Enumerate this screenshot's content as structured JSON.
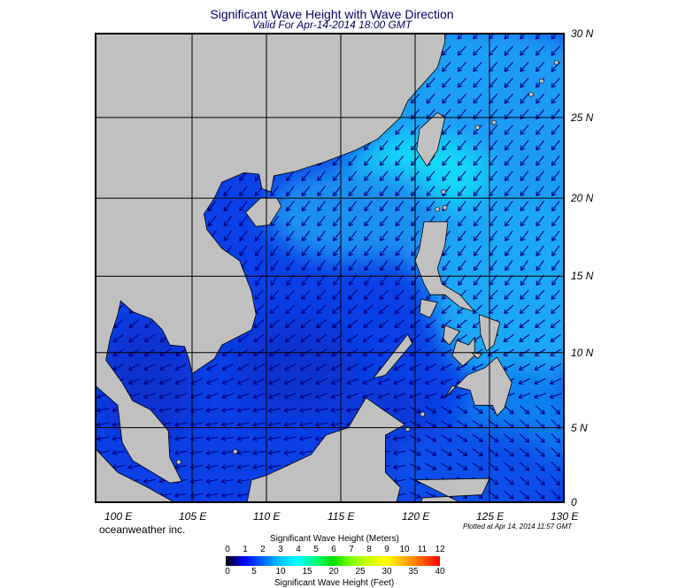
{
  "title": "Significant Wave Height with Wave Direction",
  "subtitle": "Valid For Apr-14-2014 18:00 GMT",
  "lon_labels": [
    "100 E",
    "105 E",
    "110 E",
    "115 E",
    "120 E",
    "125 E",
    "130 E"
  ],
  "lat_labels": [
    "30 N",
    "25 N",
    "20 N",
    "15 N",
    "10 N",
    "5 N",
    "0"
  ],
  "credit": "oceanweather inc.",
  "plotted": "Plotted at Apr 14, 2014 11:57 GMT",
  "colorbar": {
    "meters_title": "Significant Wave Height (Meters)",
    "feet_title": "Significant Wave Height (Feet)",
    "meters_ticks": [
      "0",
      "1",
      "2",
      "3",
      "4",
      "5",
      "6",
      "7",
      "8",
      "9",
      "10",
      "11",
      "12"
    ],
    "feet_ticks": [
      "0",
      "5",
      "10",
      "15",
      "20",
      "25",
      "30",
      "35",
      "40"
    ],
    "colors": [
      "#000000",
      "#0000ff",
      "#0060ff",
      "#00c0ff",
      "#00ffff",
      "#00ff80",
      "#00e000",
      "#80ff00",
      "#d0ff00",
      "#ffff00",
      "#ffb000",
      "#ff6000",
      "#ff0000"
    ]
  },
  "colors": {
    "land": "#c0c0c0",
    "sea_base": "#0a40e6",
    "arrow": "#000080"
  }
}
